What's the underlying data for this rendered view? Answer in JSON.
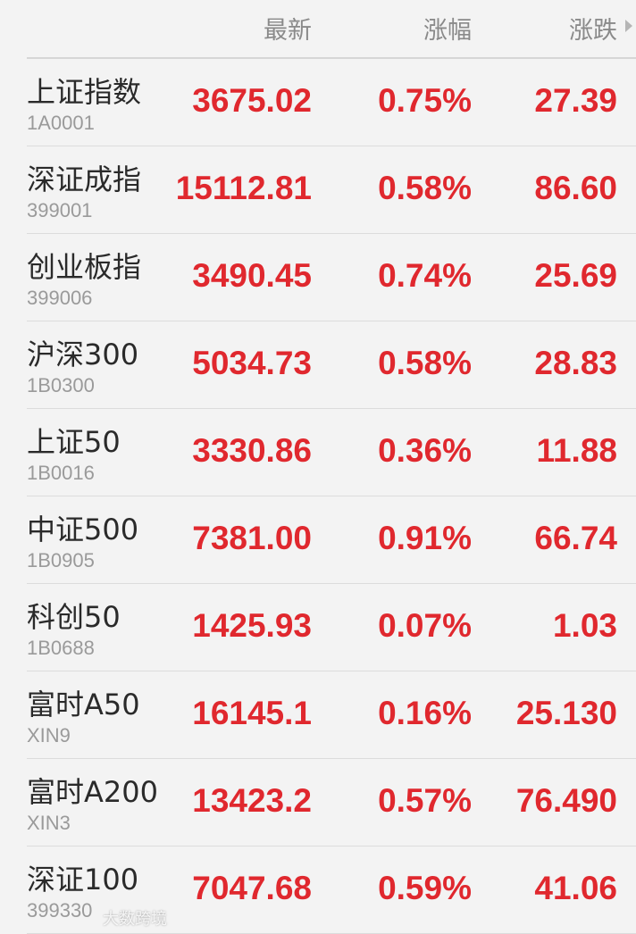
{
  "header": {
    "latest": "最新",
    "change_pct": "涨幅",
    "change": "涨跌"
  },
  "colors": {
    "up": "#e0282e"
  },
  "rows": [
    {
      "name": "上证指数",
      "code": "1A0001",
      "latest": "3675.02",
      "pct": "0.75%",
      "change": "27.39"
    },
    {
      "name": "深证成指",
      "code": "399001",
      "latest": "15112.81",
      "pct": "0.58%",
      "change": "86.60"
    },
    {
      "name": "创业板指",
      "code": "399006",
      "latest": "3490.45",
      "pct": "0.74%",
      "change": "25.69"
    },
    {
      "name": "沪深300",
      "code": "1B0300",
      "latest": "5034.73",
      "pct": "0.58%",
      "change": "28.83"
    },
    {
      "name": "上证50",
      "code": "1B0016",
      "latest": "3330.86",
      "pct": "0.36%",
      "change": "11.88"
    },
    {
      "name": "中证500",
      "code": "1B0905",
      "latest": "7381.00",
      "pct": "0.91%",
      "change": "66.74"
    },
    {
      "name": "科创50",
      "code": "1B0688",
      "latest": "1425.93",
      "pct": "0.07%",
      "change": "1.03"
    },
    {
      "name": "富时A50",
      "code": "XIN9",
      "latest": "16145.1",
      "pct": "0.16%",
      "change": "25.130"
    },
    {
      "name": "富时A200",
      "code": "XIN3",
      "latest": "13423.2",
      "pct": "0.57%",
      "change": "76.490"
    },
    {
      "name": "深证100",
      "code": "399330",
      "latest": "7047.68",
      "pct": "0.59%",
      "change": "41.06"
    }
  ],
  "watermark": "大数跨境"
}
